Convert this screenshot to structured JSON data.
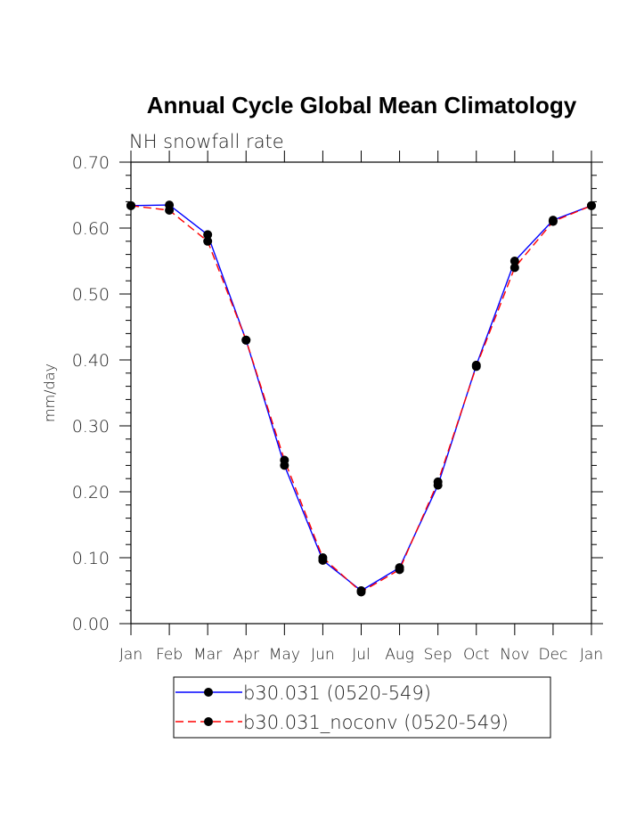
{
  "chart_data": {
    "type": "line",
    "title": "Annual Cycle Global Mean Climatology",
    "subtitle": "NH snowfall rate",
    "xlabel": "",
    "ylabel": "mm/day",
    "ylim": [
      0.0,
      0.7
    ],
    "yticks": [
      "0.00",
      "0.10",
      "0.20",
      "0.30",
      "0.40",
      "0.50",
      "0.60",
      "0.70"
    ],
    "categories": [
      "Jan",
      "Feb",
      "Mar",
      "Apr",
      "May",
      "Jun",
      "Jul",
      "Aug",
      "Sep",
      "Oct",
      "Nov",
      "Dec",
      "Jan"
    ],
    "series": [
      {
        "name": "b30.031 (0520-549)",
        "color": "#0000ff",
        "dash": "solid",
        "values": [
          0.634,
          0.635,
          0.59,
          0.43,
          0.24,
          0.096,
          0.05,
          0.085,
          0.21,
          0.392,
          0.55,
          0.612,
          0.634
        ]
      },
      {
        "name": "b30.031_noconv (0520-549)",
        "color": "#ff0000",
        "dash": "dashed",
        "values": [
          0.634,
          0.627,
          0.58,
          0.43,
          0.248,
          0.1,
          0.048,
          0.082,
          0.215,
          0.39,
          0.54,
          0.61,
          0.634
        ]
      }
    ],
    "legend_position": "bottom"
  }
}
